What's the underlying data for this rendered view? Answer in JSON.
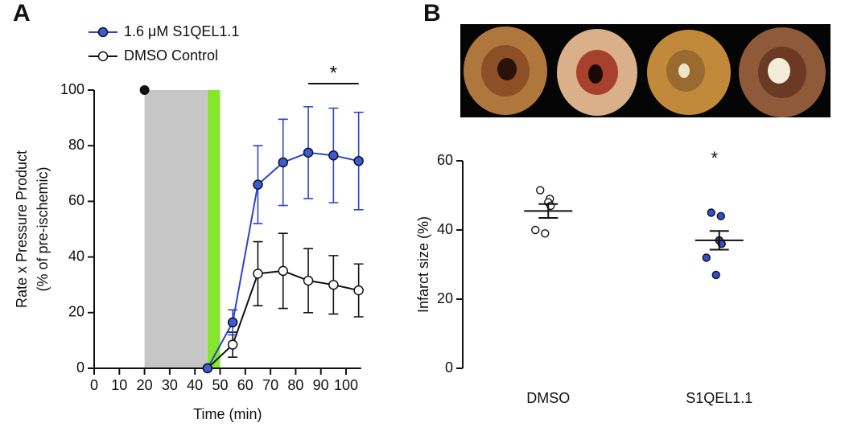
{
  "chart_data": [
    {
      "type": "line",
      "panel": "A",
      "xlabel": "Time (min)",
      "ylabel": [
        "Rate x Pressure Product",
        "(% of pre-ischemic)"
      ],
      "x": [
        45,
        55,
        65,
        75,
        85,
        95,
        105
      ],
      "series": [
        {
          "name": "1.6 μM S1QEL1.1",
          "color": "#2a46c8",
          "fill": "#3b5bd9",
          "values": [
            0,
            16.5,
            66,
            74,
            77.5,
            76.5,
            74.5
          ],
          "errors": [
            0,
            4.5,
            14,
            15.5,
            16.5,
            17,
            17.5
          ]
        },
        {
          "name": "DMSO Control",
          "color": "#111111",
          "fill": "#ffffff",
          "values": [
            0,
            8.5,
            34,
            35,
            31.5,
            30,
            28
          ],
          "errors": [
            0,
            4.5,
            11.5,
            13.5,
            11.5,
            10.5,
            9.5
          ]
        }
      ],
      "shaded_regions": [
        {
          "xmin": 20,
          "xmax": 45,
          "color": "#c6c6c6"
        },
        {
          "xmin": 45,
          "xmax": 50,
          "color": "#86e62e"
        }
      ],
      "event_marker": {
        "x": 20,
        "y": 100
      },
      "significance": {
        "text": "*",
        "x": [
          85,
          105
        ]
      },
      "xlim": [
        0,
        106
      ],
      "xticks": [
        0,
        10,
        20,
        30,
        40,
        50,
        60,
        70,
        80,
        90,
        100
      ],
      "ylim": [
        0,
        100
      ],
      "yticks": [
        0,
        20,
        40,
        60,
        80,
        100
      ],
      "legend": "upper left"
    },
    {
      "type": "dot",
      "panel": "B",
      "ylabel": "Infarct size (%)",
      "categories": [
        "DMSO",
        "S1QEL1.1"
      ],
      "points": [
        [
          51.5,
          49,
          48,
          47,
          40,
          39
        ],
        [
          45,
          44,
          37,
          36,
          32,
          27
        ]
      ],
      "means": [
        45.5,
        37
      ],
      "errors": [
        2,
        2.7
      ],
      "colors": [
        "#ffffff",
        "#2f4fcf"
      ],
      "annotation": {
        "text": "*",
        "category": 1
      },
      "ylim": [
        0,
        60
      ],
      "yticks": [
        0,
        20,
        40,
        60
      ]
    }
  ]
}
